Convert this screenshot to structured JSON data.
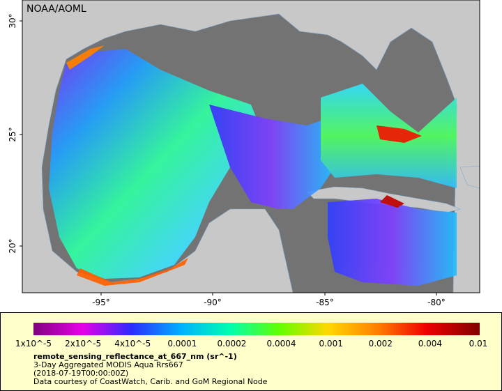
{
  "map": {
    "watermark": "NOAA/AOML",
    "lat_ticks": [
      "30°",
      "25°",
      "20°"
    ],
    "lon_ticks": [
      "-95°",
      "-90°",
      "-85°",
      "-80°"
    ],
    "colorbar": {
      "labels": [
        "1x10^-5",
        "2x10^-5",
        "4x10^-5",
        "0.0001",
        "0.0002",
        "0.0004",
        "0.001",
        "0.002",
        "0.004",
        "0.01"
      ]
    },
    "caption": {
      "variable": "remote_sensing_reflectance_at_667_nm (sr^-1)",
      "product": "3-Day Aggregated MODIS Aqua Rrs667",
      "time": "(2018-07-19T00:00:00Z)",
      "credit": "Data courtesy of CoastWatch, Carib. and GoM Regional Node"
    }
  }
}
